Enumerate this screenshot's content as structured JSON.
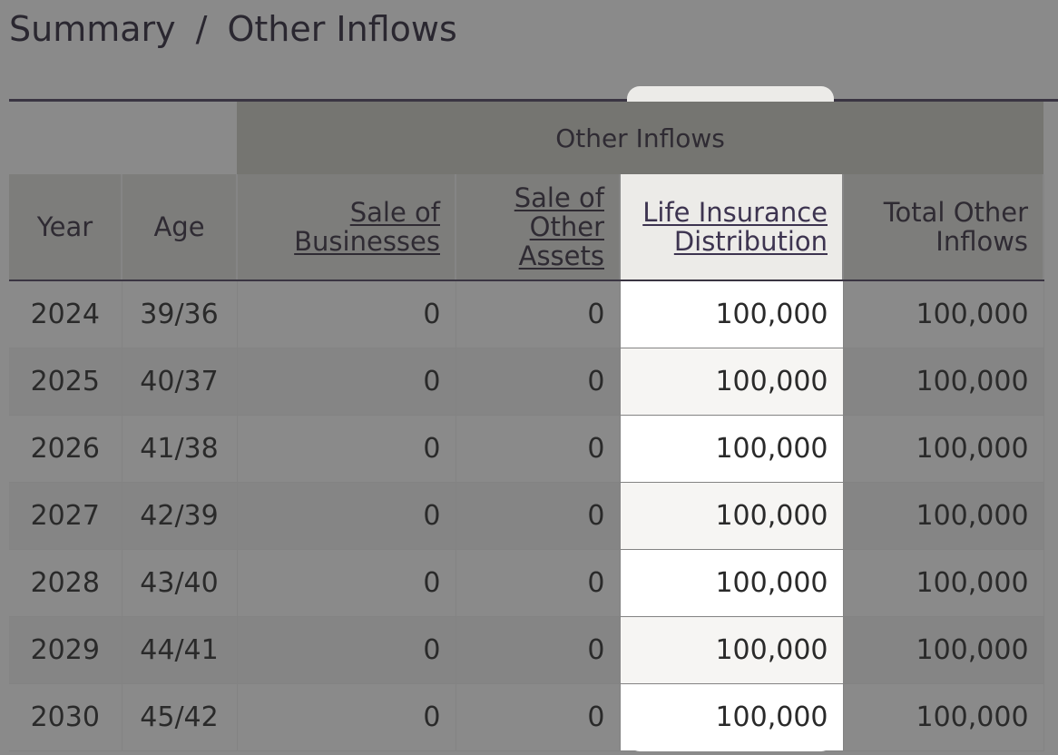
{
  "breadcrumb": {
    "items": [
      "Summary",
      "Other Inflows"
    ],
    "separator": "/"
  },
  "table": {
    "group_header": "Other Inflows",
    "columns": {
      "year": "Year",
      "age": "Age",
      "sale_of_businesses": [
        "Sale of",
        "Businesses"
      ],
      "sale_of_other_assets": [
        "Sale of",
        "Other",
        "Assets"
      ],
      "life_insurance_distribution": [
        "Life Insurance",
        "Distribution"
      ],
      "total_other_inflows": [
        "Total Other",
        "Inflows"
      ]
    },
    "rows": [
      {
        "year": "2024",
        "age": "39/36",
        "sale_of_businesses": "0",
        "sale_of_other_assets": "0",
        "life_insurance_distribution": "100,000",
        "total_other_inflows": "100,000"
      },
      {
        "year": "2025",
        "age": "40/37",
        "sale_of_businesses": "0",
        "sale_of_other_assets": "0",
        "life_insurance_distribution": "100,000",
        "total_other_inflows": "100,000"
      },
      {
        "year": "2026",
        "age": "41/38",
        "sale_of_businesses": "0",
        "sale_of_other_assets": "0",
        "life_insurance_distribution": "100,000",
        "total_other_inflows": "100,000"
      },
      {
        "year": "2027",
        "age": "42/39",
        "sale_of_businesses": "0",
        "sale_of_other_assets": "0",
        "life_insurance_distribution": "100,000",
        "total_other_inflows": "100,000"
      },
      {
        "year": "2028",
        "age": "43/40",
        "sale_of_businesses": "0",
        "sale_of_other_assets": "0",
        "life_insurance_distribution": "100,000",
        "total_other_inflows": "100,000"
      },
      {
        "year": "2029",
        "age": "44/41",
        "sale_of_businesses": "0",
        "sale_of_other_assets": "0",
        "life_insurance_distribution": "100,000",
        "total_other_inflows": "100,000"
      },
      {
        "year": "2030",
        "age": "45/42",
        "sale_of_businesses": "0",
        "sale_of_other_assets": "0",
        "life_insurance_distribution": "100,000",
        "total_other_inflows": "100,000"
      }
    ]
  },
  "colors": {
    "overlay": "#8a8a8a",
    "highlight_header": "#ecebe8",
    "highlight_cell": "#ffffff",
    "text": "#2f2b33"
  }
}
